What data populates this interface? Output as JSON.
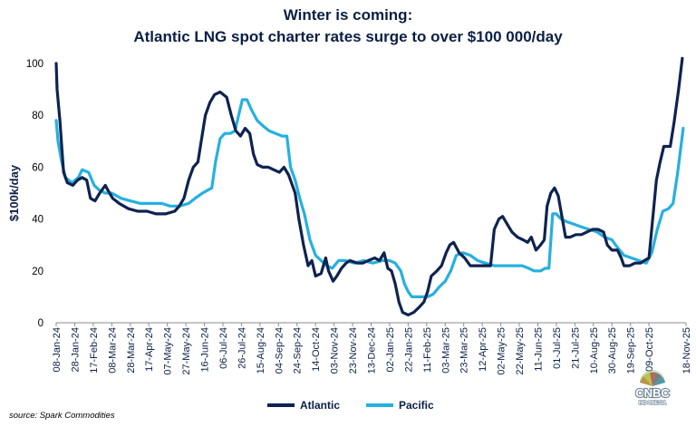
{
  "title": "Winter is coming:",
  "subtitle": "Atlantic LNG spot charter rates surge to over $100 000/day",
  "source": "source: Spark Commodities",
  "logo": {
    "text": "CNBC",
    "subtext": "INDONESIA"
  },
  "colors": {
    "atlantic": "#0e2350",
    "pacific": "#26b0e0",
    "title": "#0b1f45"
  },
  "chart_data": {
    "type": "line",
    "ylabel": "$100k/day",
    "ylim": [
      0,
      100
    ],
    "yticks": [
      0,
      20,
      40,
      60,
      80,
      100
    ],
    "grid": false,
    "legend": "bottom",
    "x_ticks": [
      "08-Jan-24",
      "28-Jan-24",
      "17-Feb-24",
      "08-Mar-24",
      "28-Mar-24",
      "17-Apr-24",
      "07-May-24",
      "27-May-24",
      "16-Jun-24",
      "06-Jul-24",
      "26-Jul-24",
      "15-Aug-24",
      "04-Sep-24",
      "24-Sep-24",
      "14-Oct-24",
      "03-Nov-24",
      "23-Nov-24",
      "13-Dec-24",
      "02-Jan-25",
      "22-Jan-25",
      "11-Feb-25",
      "03-Mar-25",
      "23-Mar-25",
      "12-Apr-25",
      "02-May-25",
      "22-May-25",
      "11-Jun-25",
      "01-Jul-25",
      "21-Jul-25",
      "10-Aug-25",
      "30-Aug-25",
      "19-Sep-25",
      "09-Oct-25",
      "18-Nov-25"
    ],
    "series": [
      {
        "name": "Atlantic",
        "color": "#0e2350",
        "points": [
          [
            "2024-01-08",
            100
          ],
          [
            "2024-01-09",
            90
          ],
          [
            "2024-01-12",
            78
          ],
          [
            "2024-01-14",
            68
          ],
          [
            "2024-01-16",
            58
          ],
          [
            "2024-01-20",
            54
          ],
          [
            "2024-01-26",
            53
          ],
          [
            "2024-01-31",
            55
          ],
          [
            "2024-02-05",
            56
          ],
          [
            "2024-02-10",
            55
          ],
          [
            "2024-02-14",
            48
          ],
          [
            "2024-02-19",
            47
          ],
          [
            "2024-02-24",
            50
          ],
          [
            "2024-03-01",
            53
          ],
          [
            "2024-03-04",
            51
          ],
          [
            "2024-03-09",
            48
          ],
          [
            "2024-03-16",
            46
          ],
          [
            "2024-03-26",
            44
          ],
          [
            "2024-04-05",
            43
          ],
          [
            "2024-04-15",
            43
          ],
          [
            "2024-04-25",
            42
          ],
          [
            "2024-05-05",
            42
          ],
          [
            "2024-05-15",
            43
          ],
          [
            "2024-05-20",
            45
          ],
          [
            "2024-05-25",
            48
          ],
          [
            "2024-05-30",
            55
          ],
          [
            "2024-06-04",
            60
          ],
          [
            "2024-06-09",
            62
          ],
          [
            "2024-06-13",
            71
          ],
          [
            "2024-06-17",
            80
          ],
          [
            "2024-06-22",
            85
          ],
          [
            "2024-06-27",
            88
          ],
          [
            "2024-07-03",
            89
          ],
          [
            "2024-07-10",
            87
          ],
          [
            "2024-07-15",
            80
          ],
          [
            "2024-07-20",
            74
          ],
          [
            "2024-07-25",
            72
          ],
          [
            "2024-07-30",
            75
          ],
          [
            "2024-08-04",
            73
          ],
          [
            "2024-08-08",
            65
          ],
          [
            "2024-08-12",
            61
          ],
          [
            "2024-08-18",
            60
          ],
          [
            "2024-08-24",
            60
          ],
          [
            "2024-08-30",
            59
          ],
          [
            "2024-09-05",
            58
          ],
          [
            "2024-09-10",
            60
          ],
          [
            "2024-09-15",
            57
          ],
          [
            "2024-09-22",
            50
          ],
          [
            "2024-09-26",
            40
          ],
          [
            "2024-10-01",
            30
          ],
          [
            "2024-10-06",
            22
          ],
          [
            "2024-10-10",
            24
          ],
          [
            "2024-10-14",
            18
          ],
          [
            "2024-10-20",
            19
          ],
          [
            "2024-10-25",
            25
          ],
          [
            "2024-10-28",
            20
          ],
          [
            "2024-11-02",
            16
          ],
          [
            "2024-11-06",
            18
          ],
          [
            "2024-11-11",
            21
          ],
          [
            "2024-11-16",
            23
          ],
          [
            "2024-11-20",
            24
          ],
          [
            "2024-11-28",
            23
          ],
          [
            "2024-12-04",
            23
          ],
          [
            "2024-12-10",
            24
          ],
          [
            "2024-12-17",
            25
          ],
          [
            "2024-12-22",
            24
          ],
          [
            "2024-12-27",
            27
          ],
          [
            "2024-12-31",
            21
          ],
          [
            "2025-01-04",
            20
          ],
          [
            "2025-01-08",
            15
          ],
          [
            "2025-01-12",
            8
          ],
          [
            "2025-01-16",
            4
          ],
          [
            "2025-01-22",
            3
          ],
          [
            "2025-01-28",
            4
          ],
          [
            "2025-02-03",
            6
          ],
          [
            "2025-02-08",
            8
          ],
          [
            "2025-02-12",
            12
          ],
          [
            "2025-02-16",
            18
          ],
          [
            "2025-02-22",
            20
          ],
          [
            "2025-02-27",
            22
          ],
          [
            "2025-03-04",
            27
          ],
          [
            "2025-03-08",
            30
          ],
          [
            "2025-03-12",
            31
          ],
          [
            "2025-03-18",
            27
          ],
          [
            "2025-03-24",
            25
          ],
          [
            "2025-03-30",
            22
          ],
          [
            "2025-04-07",
            22
          ],
          [
            "2025-04-15",
            22
          ],
          [
            "2025-04-21",
            22
          ],
          [
            "2025-04-25",
            36
          ],
          [
            "2025-04-30",
            40
          ],
          [
            "2025-05-04",
            41
          ],
          [
            "2025-05-09",
            38
          ],
          [
            "2025-05-14",
            35
          ],
          [
            "2025-05-20",
            33
          ],
          [
            "2025-05-26",
            32
          ],
          [
            "2025-05-31",
            31
          ],
          [
            "2025-06-04",
            33
          ],
          [
            "2025-06-09",
            28
          ],
          [
            "2025-06-14",
            30
          ],
          [
            "2025-06-18",
            32
          ],
          [
            "2025-06-21",
            45
          ],
          [
            "2025-06-25",
            50
          ],
          [
            "2025-06-29",
            52
          ],
          [
            "2025-07-03",
            49
          ],
          [
            "2025-07-07",
            41
          ],
          [
            "2025-07-11",
            33
          ],
          [
            "2025-07-16",
            33
          ],
          [
            "2025-07-22",
            34
          ],
          [
            "2025-07-28",
            34
          ],
          [
            "2025-08-03",
            35
          ],
          [
            "2025-08-09",
            36
          ],
          [
            "2025-08-15",
            36
          ],
          [
            "2025-08-21",
            35
          ],
          [
            "2025-08-25",
            30
          ],
          [
            "2025-08-30",
            28
          ],
          [
            "2025-09-05",
            28
          ],
          [
            "2025-09-09",
            25
          ],
          [
            "2025-09-12",
            22
          ],
          [
            "2025-09-18",
            22
          ],
          [
            "2025-09-24",
            23
          ],
          [
            "2025-09-30",
            23
          ],
          [
            "2025-10-04",
            24
          ],
          [
            "2025-10-09",
            25
          ],
          [
            "2025-10-13",
            40
          ],
          [
            "2025-10-17",
            55
          ],
          [
            "2025-10-21",
            62
          ],
          [
            "2025-10-25",
            68
          ],
          [
            "2025-11-01",
            68
          ],
          [
            "2025-11-05",
            77
          ],
          [
            "2025-11-10",
            90
          ],
          [
            "2025-11-14",
            102
          ]
        ]
      },
      {
        "name": "Pacific",
        "color": "#26b0e0",
        "points": [
          [
            "2024-01-08",
            78
          ],
          [
            "2024-01-10",
            70
          ],
          [
            "2024-01-14",
            62
          ],
          [
            "2024-01-18",
            56
          ],
          [
            "2024-01-25",
            54
          ],
          [
            "2024-02-01",
            56
          ],
          [
            "2024-02-05",
            59
          ],
          [
            "2024-02-12",
            58
          ],
          [
            "2024-02-18",
            53
          ],
          [
            "2024-02-24",
            51
          ],
          [
            "2024-03-01",
            50
          ],
          [
            "2024-03-08",
            50
          ],
          [
            "2024-03-18",
            48
          ],
          [
            "2024-03-28",
            47
          ],
          [
            "2024-04-08",
            46
          ],
          [
            "2024-04-20",
            46
          ],
          [
            "2024-05-01",
            46
          ],
          [
            "2024-05-10",
            45
          ],
          [
            "2024-05-20",
            45
          ],
          [
            "2024-05-30",
            46
          ],
          [
            "2024-06-06",
            48
          ],
          [
            "2024-06-14",
            50
          ],
          [
            "2024-06-19",
            51
          ],
          [
            "2024-06-24",
            52
          ],
          [
            "2024-06-28",
            62
          ],
          [
            "2024-07-03",
            71
          ],
          [
            "2024-07-08",
            73
          ],
          [
            "2024-07-14",
            73
          ],
          [
            "2024-07-19",
            74
          ],
          [
            "2024-07-23",
            80
          ],
          [
            "2024-07-27",
            86
          ],
          [
            "2024-08-01",
            86
          ],
          [
            "2024-08-06",
            82
          ],
          [
            "2024-08-12",
            78
          ],
          [
            "2024-08-18",
            76
          ],
          [
            "2024-08-25",
            74
          ],
          [
            "2024-09-01",
            73
          ],
          [
            "2024-09-08",
            72
          ],
          [
            "2024-09-13",
            72
          ],
          [
            "2024-09-17",
            60
          ],
          [
            "2024-09-22",
            55
          ],
          [
            "2024-09-27",
            48
          ],
          [
            "2024-10-02",
            42
          ],
          [
            "2024-10-08",
            32
          ],
          [
            "2024-10-14",
            26
          ],
          [
            "2024-10-20",
            24
          ],
          [
            "2024-10-26",
            22
          ],
          [
            "2024-11-01",
            21
          ],
          [
            "2024-11-08",
            24
          ],
          [
            "2024-11-15",
            24
          ],
          [
            "2024-11-25",
            23
          ],
          [
            "2024-12-05",
            24
          ],
          [
            "2024-12-15",
            23
          ],
          [
            "2024-12-25",
            24
          ],
          [
            "2025-01-02",
            24
          ],
          [
            "2025-01-08",
            23
          ],
          [
            "2025-01-14",
            20
          ],
          [
            "2025-01-18",
            15
          ],
          [
            "2025-01-22",
            12
          ],
          [
            "2025-01-26",
            10
          ],
          [
            "2025-02-03",
            10
          ],
          [
            "2025-02-12",
            10
          ],
          [
            "2025-02-18",
            11
          ],
          [
            "2025-02-25",
            14
          ],
          [
            "2025-03-03",
            16
          ],
          [
            "2025-03-09",
            20
          ],
          [
            "2025-03-15",
            26
          ],
          [
            "2025-03-22",
            27
          ],
          [
            "2025-03-30",
            26
          ],
          [
            "2025-04-07",
            24
          ],
          [
            "2025-04-15",
            23
          ],
          [
            "2025-04-25",
            22
          ],
          [
            "2025-05-05",
            22
          ],
          [
            "2025-05-15",
            22
          ],
          [
            "2025-05-25",
            22
          ],
          [
            "2025-06-01",
            21
          ],
          [
            "2025-06-07",
            20
          ],
          [
            "2025-06-14",
            20
          ],
          [
            "2025-06-19",
            21
          ],
          [
            "2025-06-23",
            21
          ],
          [
            "2025-06-27",
            42
          ],
          [
            "2025-07-01",
            42
          ],
          [
            "2025-07-06",
            40
          ],
          [
            "2025-07-12",
            39
          ],
          [
            "2025-07-20",
            38
          ],
          [
            "2025-07-28",
            37
          ],
          [
            "2025-08-05",
            36
          ],
          [
            "2025-08-14",
            35
          ],
          [
            "2025-08-22",
            33
          ],
          [
            "2025-08-30",
            32
          ],
          [
            "2025-09-05",
            29
          ],
          [
            "2025-09-12",
            26
          ],
          [
            "2025-09-20",
            25
          ],
          [
            "2025-09-28",
            24
          ],
          [
            "2025-10-06",
            23
          ],
          [
            "2025-10-12",
            27
          ],
          [
            "2025-10-18",
            36
          ],
          [
            "2025-10-24",
            43
          ],
          [
            "2025-10-30",
            44
          ],
          [
            "2025-11-04",
            46
          ],
          [
            "2025-11-09",
            58
          ],
          [
            "2025-11-15",
            75
          ]
        ]
      }
    ]
  }
}
